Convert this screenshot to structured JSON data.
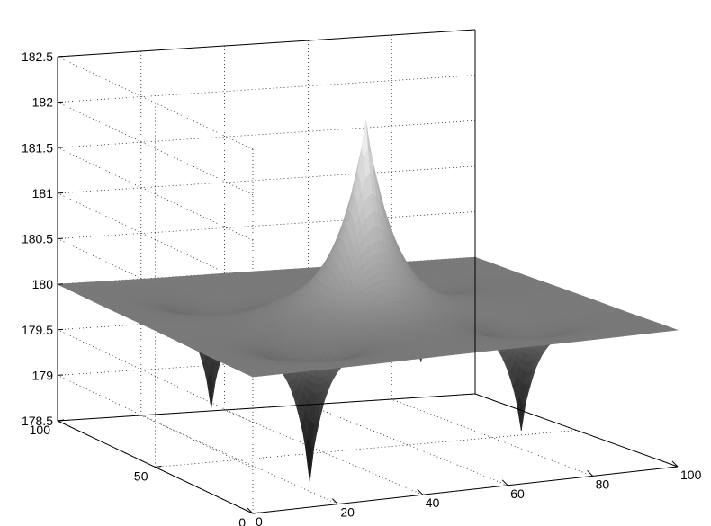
{
  "chart_data": {
    "type": "surface",
    "title": "",
    "xlabel": "",
    "ylabel": "",
    "zlabel": "",
    "xlim": [
      0,
      100
    ],
    "ylim": [
      0,
      100
    ],
    "zlim": [
      178.5,
      182.5
    ],
    "grid": true,
    "colormap": "gray",
    "base_level": 180,
    "x_ticks": [
      "0",
      "20",
      "40",
      "60",
      "80",
      "100"
    ],
    "y_ticks": [
      "0",
      "50",
      "100"
    ],
    "z_ticks": [
      "178.5",
      "179",
      "179.5",
      "180",
      "180.5",
      "181",
      "181.5",
      "182",
      "182.5"
    ],
    "peaks": [
      {
        "x": 50,
        "y": 50,
        "z": 182.1
      }
    ],
    "wells": [
      {
        "x": 25,
        "y": 25,
        "z": 178.6
      },
      {
        "x": 75,
        "y": 25,
        "z": 178.9
      },
      {
        "x": 25,
        "y": 75,
        "z": 178.9
      },
      {
        "x": 75,
        "y": 75,
        "z": 179.2
      }
    ]
  }
}
